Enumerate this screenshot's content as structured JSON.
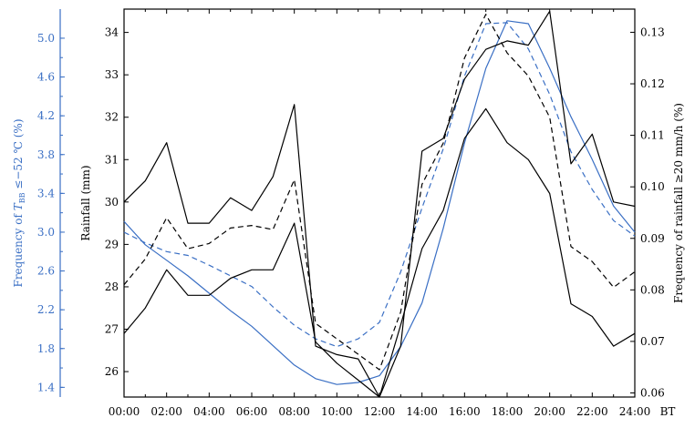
{
  "chart_data": {
    "type": "line",
    "x_label_suffix": "BT",
    "x_ticks": [
      "00:00",
      "02:00",
      "04:00",
      "06:00",
      "08:00",
      "10:00",
      "12:00",
      "14:00",
      "16:00",
      "18:00",
      "20:00",
      "22:00",
      "24:00"
    ],
    "x_range": [
      0,
      24
    ],
    "axes": {
      "left_outer": {
        "label": "Frequency of T_BB ≤−52 ℃ (%)",
        "label_prefix": "Frequency of ",
        "label_var": "T",
        "label_sub": "BB",
        "label_suffix": " ≤−52 ℃ (%)",
        "range": [
          1.3,
          5.3
        ],
        "ticks": [
          "1.4",
          "1.8",
          "2.2",
          "2.6",
          "3.0",
          "3.4",
          "3.8",
          "4.2",
          "4.6",
          "5.0"
        ],
        "color": "#3a6fc4"
      },
      "left_inner": {
        "label": "Rainfall (mm)",
        "range": [
          25.4,
          34.55
        ],
        "ticks": [
          "26",
          "27",
          "28",
          "29",
          "30",
          "31",
          "32",
          "33",
          "34"
        ],
        "color": "#000000"
      },
      "right": {
        "label": "Frequency of rainfall ≥20 mm/h (%)",
        "range": [
          0.0592,
          0.1345
        ],
        "ticks": [
          "0.06",
          "0.07",
          "0.08",
          "0.09",
          "0.10",
          "0.11",
          "0.12",
          "0.13"
        ],
        "color": "#000000"
      }
    },
    "series": [
      {
        "axis": "left_outer",
        "color": "#3a6fc4",
        "dash": "solid",
        "x": [
          0,
          1,
          2,
          3,
          4,
          5,
          6,
          7,
          8,
          9,
          10,
          11,
          12,
          13,
          14,
          15,
          16,
          17,
          18,
          19,
          20,
          21,
          22,
          23,
          24
        ],
        "values": [
          3.11,
          2.87,
          2.71,
          2.55,
          2.37,
          2.19,
          2.03,
          1.83,
          1.63,
          1.49,
          1.43,
          1.45,
          1.52,
          1.82,
          2.27,
          3.04,
          3.92,
          4.69,
          5.18,
          5.15,
          4.69,
          4.19,
          3.75,
          3.27,
          3.0
        ]
      },
      {
        "axis": "left_outer",
        "color": "#3a6fc4",
        "dash": "dashed",
        "x": [
          0,
          1,
          2,
          3,
          4,
          5,
          6,
          7,
          8,
          9,
          10,
          11,
          12,
          13,
          14,
          15,
          16,
          17,
          18,
          19,
          20,
          21,
          22,
          23,
          24
        ],
        "values": [
          3.0,
          2.89,
          2.8,
          2.76,
          2.66,
          2.55,
          2.44,
          2.23,
          2.04,
          1.9,
          1.82,
          1.9,
          2.07,
          2.59,
          3.25,
          3.86,
          4.61,
          5.15,
          5.16,
          4.89,
          4.42,
          3.83,
          3.44,
          3.12,
          2.96
        ]
      },
      {
        "axis": "left_inner",
        "color": "#000000",
        "dash": "solid",
        "x": [
          0,
          1,
          2,
          3,
          4,
          5,
          6,
          7,
          8,
          9,
          10,
          11,
          12,
          13,
          14,
          15,
          16,
          17,
          18,
          19,
          20,
          21,
          22,
          23,
          24
        ],
        "values": [
          30.0,
          30.5,
          31.4,
          29.5,
          29.5,
          30.1,
          29.8,
          30.6,
          32.3,
          26.6,
          26.4,
          26.3,
          25.4,
          26.6,
          31.2,
          31.5,
          32.9,
          33.6,
          33.8,
          33.7,
          34.5,
          30.9,
          31.6,
          30.0,
          29.9
        ]
      },
      {
        "axis": "right",
        "color": "#000000",
        "dash": "dashed",
        "x": [
          0,
          1,
          2,
          3,
          4,
          5,
          6,
          7,
          8,
          9,
          10,
          11,
          12,
          13,
          14,
          15,
          16,
          17,
          18,
          19,
          20,
          21,
          22,
          23,
          24
        ],
        "values": [
          0.081,
          0.086,
          0.094,
          0.088,
          0.089,
          0.092,
          0.0925,
          0.0917,
          0.1014,
          0.0735,
          0.0705,
          0.0675,
          0.0645,
          0.0757,
          0.1005,
          0.1085,
          0.125,
          0.1335,
          0.126,
          0.1215,
          0.1135,
          0.0884,
          0.0855,
          0.0805,
          0.0835
        ]
      },
      {
        "axis": "left_inner",
        "color": "#000000",
        "dash": "solid",
        "x": [
          0,
          1,
          2,
          3,
          4,
          5,
          6,
          7,
          8,
          9,
          10,
          11,
          12,
          13,
          14,
          15,
          16,
          17,
          18,
          19,
          20,
          21,
          22,
          23,
          24
        ],
        "values": [
          26.9,
          27.5,
          28.4,
          27.8,
          27.8,
          28.2,
          28.4,
          28.4,
          29.5,
          26.7,
          26.2,
          25.8,
          25.4,
          27.1,
          28.9,
          29.8,
          31.5,
          32.2,
          31.4,
          31.0,
          30.2,
          27.6,
          27.3,
          26.6,
          26.9
        ]
      }
    ]
  }
}
